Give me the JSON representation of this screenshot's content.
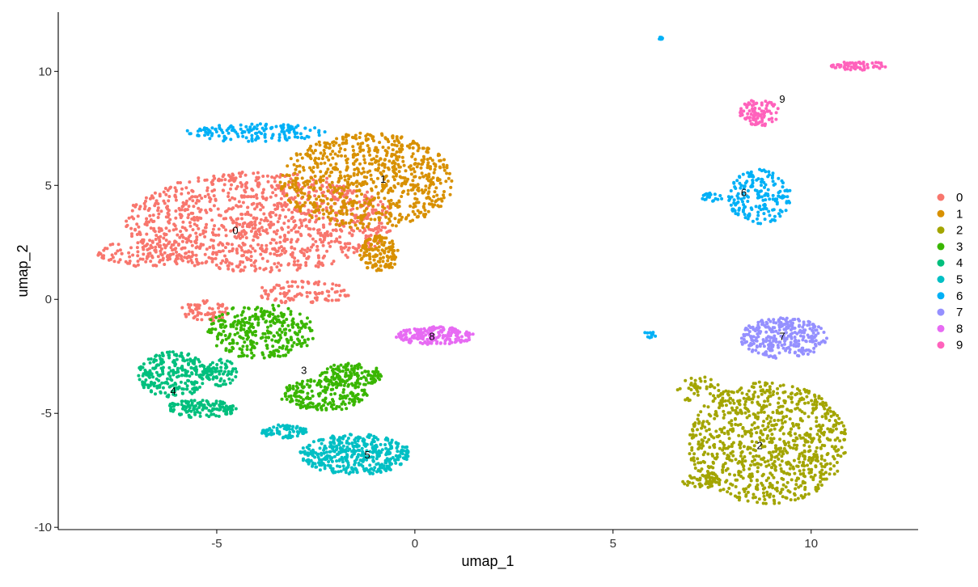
{
  "chart_data": {
    "type": "scatter",
    "title": "",
    "xlabel": "umap_1",
    "ylabel": "umap_2",
    "xlim": [
      -9.0,
      12.7
    ],
    "ylim": [
      -10.1,
      12.6
    ],
    "xticks": [
      -5,
      0,
      5,
      10
    ],
    "yticks": [
      -10,
      -5,
      0,
      5,
      10
    ],
    "xtick_labels": [
      "-5",
      "0",
      "5",
      "10"
    ],
    "ytick_labels": [
      "-10",
      "-5",
      "0",
      "5",
      "10"
    ],
    "grid": false,
    "legend_placement": "right",
    "clusters": [
      {
        "name": "0",
        "color": "#F8766D",
        "label_pos": [
          -4.53,
          3.05
        ],
        "n": 1400,
        "regions": [
          [
            -3.9,
            3.4,
            3.4,
            2.2,
            0.8
          ],
          [
            -6.8,
            2.0,
            1.2,
            0.6,
            0.08
          ],
          [
            -5.3,
            -0.5,
            0.6,
            0.5,
            0.05
          ],
          [
            -2.8,
            0.3,
            1.2,
            0.5,
            0.07
          ]
        ]
      },
      {
        "name": "1",
        "color": "#D89000",
        "label_pos": [
          -0.8,
          5.3
        ],
        "n": 900,
        "regions": [
          [
            -1.2,
            5.2,
            2.2,
            2.1,
            0.85
          ],
          [
            -0.9,
            2.0,
            0.5,
            0.8,
            0.15
          ]
        ]
      },
      {
        "name": "2",
        "color": "#A3A500",
        "label_pos": [
          8.7,
          -6.4
        ],
        "n": 1000,
        "regions": [
          [
            8.9,
            -6.3,
            2.0,
            2.7,
            0.92
          ],
          [
            7.2,
            -8.0,
            0.5,
            0.3,
            0.04
          ],
          [
            7.2,
            -4.0,
            0.6,
            0.6,
            0.04
          ]
        ]
      },
      {
        "name": "3",
        "color": "#39B600",
        "label_pos": [
          -2.8,
          -3.1
        ],
        "n": 650,
        "regions": [
          [
            -3.9,
            -1.4,
            1.4,
            1.2,
            0.5
          ],
          [
            -2.3,
            -4.2,
            1.1,
            0.7,
            0.3
          ],
          [
            -1.6,
            -3.3,
            0.8,
            0.5,
            0.2
          ]
        ]
      },
      {
        "name": "4",
        "color": "#00BF7D",
        "label_pos": [
          -6.1,
          -4.0
        ],
        "n": 450,
        "regions": [
          [
            -6.1,
            -3.3,
            0.9,
            1.0,
            0.55
          ],
          [
            -5.4,
            -4.8,
            0.9,
            0.4,
            0.3
          ],
          [
            -4.9,
            -3.2,
            0.4,
            0.6,
            0.15
          ]
        ]
      },
      {
        "name": "5",
        "color": "#00BFC4",
        "label_pos": [
          -1.2,
          -6.8
        ],
        "n": 500,
        "regions": [
          [
            -1.5,
            -6.8,
            1.4,
            0.9,
            0.85
          ],
          [
            -3.3,
            -5.8,
            0.6,
            0.3,
            0.15
          ]
        ]
      },
      {
        "name": "6",
        "color": "#00B0F6",
        "label_pos": [
          8.3,
          4.7
        ],
        "n": 380,
        "regions": [
          [
            -4.0,
            7.3,
            1.8,
            0.4,
            0.4
          ],
          [
            8.7,
            4.5,
            0.8,
            1.2,
            0.5
          ],
          [
            7.5,
            4.5,
            0.3,
            0.2,
            0.05
          ],
          [
            5.95,
            -1.5,
            0.15,
            0.2,
            0.03
          ],
          [
            6.2,
            11.45,
            0.05,
            0.05,
            0.02
          ]
        ]
      },
      {
        "name": "7",
        "color": "#9590FF",
        "label_pos": [
          9.27,
          -1.6
        ],
        "n": 300,
        "regions": [
          [
            9.3,
            -1.7,
            1.1,
            0.9,
            1.0
          ]
        ]
      },
      {
        "name": "8",
        "color": "#E76BF3",
        "label_pos": [
          0.43,
          -1.6
        ],
        "n": 200,
        "regions": [
          [
            0.5,
            -1.6,
            1.0,
            0.4,
            1.0
          ]
        ]
      },
      {
        "name": "9",
        "color": "#FF62BC",
        "label_pos": [
          9.27,
          8.8
        ],
        "n": 160,
        "regions": [
          [
            8.7,
            8.2,
            0.5,
            0.6,
            0.6
          ],
          [
            11.2,
            10.25,
            0.7,
            0.2,
            0.4
          ]
        ]
      }
    ],
    "legend": [
      "0",
      "1",
      "2",
      "3",
      "4",
      "5",
      "6",
      "7",
      "8",
      "9"
    ]
  }
}
